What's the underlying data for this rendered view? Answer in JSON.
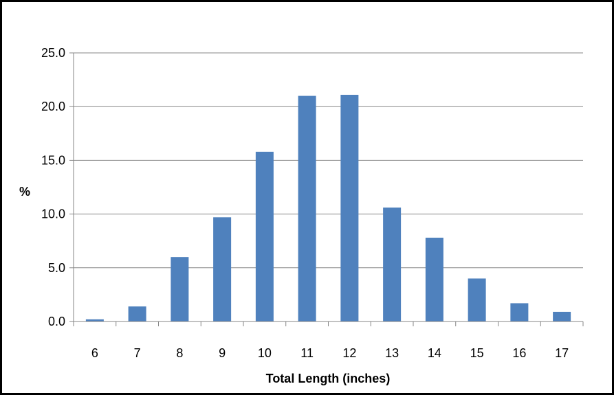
{
  "chart_data": {
    "type": "bar",
    "title": "",
    "xlabel": "Total Length (inches)",
    "ylabel": "%",
    "categories": [
      "6",
      "7",
      "8",
      "9",
      "10",
      "11",
      "12",
      "13",
      "14",
      "15",
      "16",
      "17"
    ],
    "values": [
      0.2,
      1.4,
      6.0,
      9.7,
      15.8,
      21.0,
      21.1,
      10.6,
      7.8,
      4.0,
      1.7,
      0.9
    ],
    "ylim": [
      0,
      25
    ],
    "yticks": [
      "0.0",
      "5.0",
      "10.0",
      "15.0",
      "20.0",
      "25.0"
    ],
    "grid": true,
    "legend": "none",
    "colors": {
      "bar": "#4f81bd",
      "grid": "#868686",
      "axis": "#868686",
      "border": "#000000"
    }
  }
}
